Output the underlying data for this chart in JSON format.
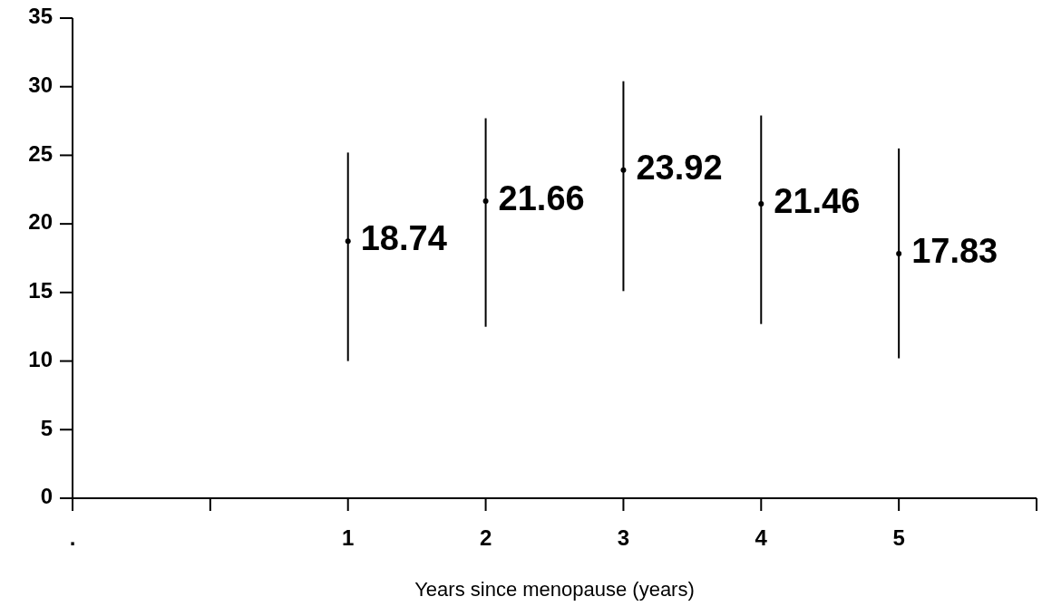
{
  "chart_data": {
    "type": "scatter",
    "xlabel": "Years since menopause  (years)",
    "x": [
      1,
      2,
      3,
      4,
      5
    ],
    "values": [
      18.74,
      21.66,
      23.92,
      21.46,
      17.83
    ],
    "errors": [
      [
        10.0,
        25.2
      ],
      [
        12.5,
        27.7
      ],
      [
        15.1,
        30.4
      ],
      [
        12.7,
        27.9
      ],
      [
        10.2,
        25.5
      ]
    ],
    "color": "#000000",
    "marker": "circle",
    "data_labels": true,
    "xlim": [
      -1,
      6
    ],
    "xticks": [
      {
        "value": -1,
        "label": "."
      },
      {
        "value": 0,
        "label": null
      },
      1,
      2,
      3,
      4,
      5,
      {
        "value": 6,
        "label": null
      }
    ],
    "ylim": [
      0,
      35
    ],
    "yticks": [
      0,
      5,
      10,
      15,
      20,
      25,
      30,
      35
    ],
    "grid": false,
    "legend": false
  }
}
